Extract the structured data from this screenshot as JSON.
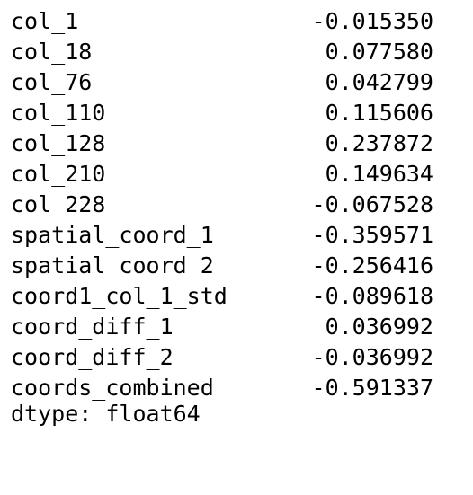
{
  "series": {
    "rows": [
      {
        "name": "col_1",
        "value": "-0.015350"
      },
      {
        "name": "col_18",
        "value": "0.077580"
      },
      {
        "name": "col_76",
        "value": "0.042799"
      },
      {
        "name": "col_110",
        "value": "0.115606"
      },
      {
        "name": "col_128",
        "value": "0.237872"
      },
      {
        "name": "col_210",
        "value": "0.149634"
      },
      {
        "name": "col_228",
        "value": "-0.067528"
      },
      {
        "name": "spatial_coord_1",
        "value": "-0.359571"
      },
      {
        "name": "spatial_coord_2",
        "value": "-0.256416"
      },
      {
        "name": "coord1_col_1_std",
        "value": "-0.089618"
      },
      {
        "name": "coord_diff_1",
        "value": "0.036992"
      },
      {
        "name": "coord_diff_2",
        "value": "-0.036992"
      },
      {
        "name": "coords_combined",
        "value": "-0.591337"
      }
    ],
    "dtype_line": "dtype: float64"
  }
}
